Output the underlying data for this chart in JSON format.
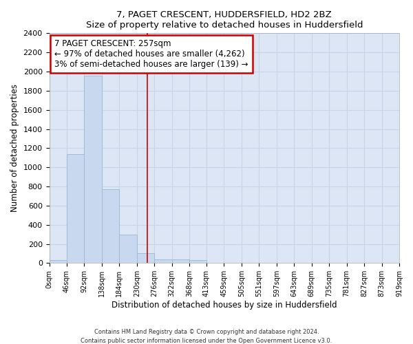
{
  "title": "7, PAGET CRESCENT, HUDDERSFIELD, HD2 2BZ",
  "subtitle": "Size of property relative to detached houses in Huddersfield",
  "xlabel": "Distribution of detached houses by size in Huddersfield",
  "ylabel": "Number of detached properties",
  "bin_edges": [
    0,
    46,
    92,
    138,
    184,
    230,
    276,
    322,
    368,
    413,
    459,
    505,
    551,
    597,
    643,
    689,
    735,
    781,
    827,
    873,
    919
  ],
  "bin_heights": [
    30,
    1140,
    1960,
    770,
    300,
    100,
    40,
    40,
    30,
    0,
    0,
    0,
    0,
    0,
    0,
    0,
    0,
    0,
    0,
    0
  ],
  "bar_color": "#c8d8ee",
  "bar_edge_color": "#a0bcd8",
  "red_line_x": 257,
  "annotation_title": "7 PAGET CRESCENT: 257sqm",
  "annotation_line1": "← 97% of detached houses are smaller (4,262)",
  "annotation_line2": "3% of semi-detached houses are larger (139) →",
  "annotation_box_color": "#ffffff",
  "annotation_box_edge": "#cc0000",
  "red_line_color": "#cc0000",
  "ylim": [
    0,
    2400
  ],
  "yticks": [
    0,
    200,
    400,
    600,
    800,
    1000,
    1200,
    1400,
    1600,
    1800,
    2000,
    2200,
    2400
  ],
  "grid_color": "#c8d4e8",
  "background_color": "#dce6f4",
  "footer_line1": "Contains HM Land Registry data © Crown copyright and database right 2024.",
  "footer_line2": "Contains public sector information licensed under the Open Government Licence v3.0.",
  "tick_labels": [
    "0sqm",
    "46sqm",
    "92sqm",
    "138sqm",
    "184sqm",
    "230sqm",
    "276sqm",
    "322sqm",
    "368sqm",
    "413sqm",
    "459sqm",
    "505sqm",
    "551sqm",
    "597sqm",
    "643sqm",
    "689sqm",
    "735sqm",
    "781sqm",
    "827sqm",
    "873sqm",
    "919sqm"
  ]
}
